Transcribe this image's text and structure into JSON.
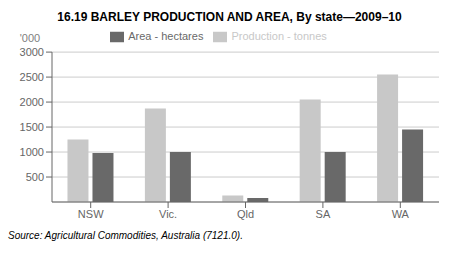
{
  "chart_data": {
    "type": "bar",
    "title": "16.19   BARLEY PRODUCTION AND AREA, By state—2009–10",
    "ylabel": "'000",
    "categories": [
      "NSW",
      "Vic.",
      "Qld",
      "SA",
      "WA"
    ],
    "series": [
      {
        "name": "Production - tonnes",
        "color": "#c8c8c8",
        "values": [
          1250,
          1870,
          130,
          2050,
          2550
        ]
      },
      {
        "name": "Area - hectares",
        "color": "#696969",
        "values": [
          980,
          1000,
          80,
          1000,
          1450
        ]
      }
    ],
    "ylim": [
      0,
      3000
    ],
    "yticks": [
      500,
      1000,
      1500,
      2000,
      2500,
      3000
    ],
    "grid": true,
    "legend": "top",
    "annotations": [
      "Source: Agricultural Commodities, Australia (7121.0)."
    ]
  }
}
